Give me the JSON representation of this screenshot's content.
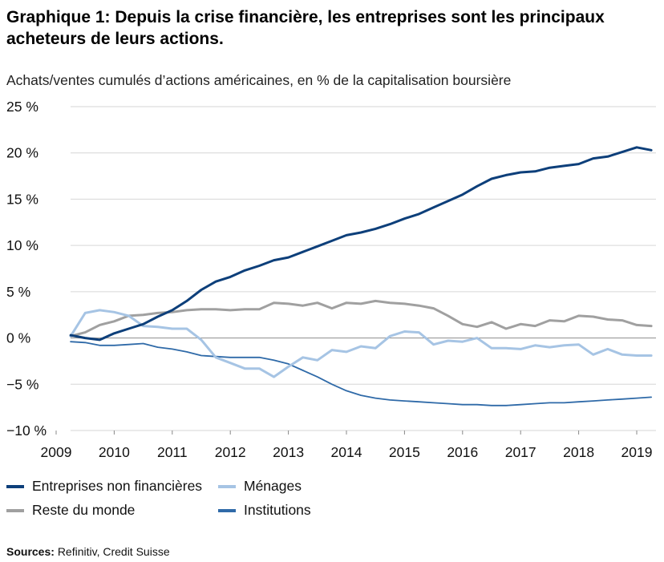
{
  "header": {
    "title": "Graphique 1: Depuis la crise financière, les entreprises sont les principaux acheteurs de leurs actions.",
    "subtitle": "Achats/ventes cumulés d’actions américaines, en % de la capitalisation boursière"
  },
  "footer": {
    "source_label": "Sources:",
    "source_text": "Refinitiv, Credit Suisse"
  },
  "colors": {
    "entreprises": "#0d3f7a",
    "menages": "#a6c4e4",
    "reste": "#a0a0a0",
    "institutions": "#2f6aa8",
    "grid": "#d6d6d6",
    "zero_line": "#999999"
  },
  "chart_data": {
    "type": "line",
    "title": "Graphique 1: Depuis la crise financière, les entreprises sont les principaux acheteurs de leurs actions.",
    "subtitle": "Achats/ventes cumulés d’actions américaines, en % de la capitalisation boursière",
    "xlim": [
      2009,
      2019.33
    ],
    "ylim": [
      -10,
      25
    ],
    "x_ticks": [
      2009,
      2010,
      2011,
      2012,
      2013,
      2014,
      2015,
      2016,
      2017,
      2018,
      2019
    ],
    "x_tick_labels": [
      "2009",
      "2010",
      "2011",
      "2012",
      "2013",
      "2014",
      "2015",
      "2016",
      "2017",
      "2018",
      "2019"
    ],
    "y_ticks": [
      -10,
      -5,
      0,
      5,
      10,
      15,
      20,
      25
    ],
    "y_tick_labels": [
      "−10 %",
      "−5 %",
      "0 %",
      "5 %",
      "10 %",
      "15 %",
      "20 %",
      "25 %"
    ],
    "grid": "horizontal",
    "legend_position": "bottom",
    "x": [
      2009.25,
      2009.5,
      2009.75,
      2010.0,
      2010.25,
      2010.5,
      2010.75,
      2011.0,
      2011.25,
      2011.5,
      2011.75,
      2012.0,
      2012.25,
      2012.5,
      2012.75,
      2013.0,
      2013.25,
      2013.5,
      2013.75,
      2014.0,
      2014.25,
      2014.5,
      2014.75,
      2015.0,
      2015.25,
      2015.5,
      2015.75,
      2016.0,
      2016.25,
      2016.5,
      2016.75,
      2017.0,
      2017.25,
      2017.5,
      2017.75,
      2018.0,
      2018.25,
      2018.5,
      2018.75,
      2019.0,
      2019.25
    ],
    "series": [
      {
        "name": "Entreprises non financières",
        "key": "entreprises",
        "stroke_width": 3,
        "values": [
          0.3,
          0.0,
          -0.2,
          0.5,
          1.0,
          1.5,
          2.3,
          3.0,
          4.0,
          5.2,
          6.1,
          6.6,
          7.3,
          7.8,
          8.4,
          8.7,
          9.3,
          9.9,
          10.5,
          11.1,
          11.4,
          11.8,
          12.3,
          12.9,
          13.4,
          14.1,
          14.8,
          15.5,
          16.4,
          17.2,
          17.6,
          17.9,
          18.0,
          18.4,
          18.6,
          18.8,
          19.4,
          19.6,
          20.1,
          20.6,
          20.3
        ]
      },
      {
        "name": "Ménages",
        "key": "menages",
        "stroke_width": 3,
        "values": [
          0.2,
          2.7,
          3.0,
          2.8,
          2.4,
          1.3,
          1.2,
          1.0,
          1.0,
          -0.2,
          -2.1,
          -2.7,
          -3.3,
          -3.3,
          -4.2,
          -3.1,
          -2.1,
          -2.4,
          -1.3,
          -1.5,
          -0.9,
          -1.1,
          0.2,
          0.7,
          0.6,
          -0.7,
          -0.3,
          -0.4,
          0.0,
          -1.1,
          -1.1,
          -1.2,
          -0.8,
          -1.0,
          -0.8,
          -0.7,
          -1.8,
          -1.2,
          -1.8,
          -1.9,
          -1.9
        ]
      },
      {
        "name": "Reste du monde",
        "key": "reste",
        "stroke_width": 3,
        "values": [
          0.2,
          0.6,
          1.4,
          1.8,
          2.4,
          2.5,
          2.7,
          2.8,
          3.0,
          3.1,
          3.1,
          3.0,
          3.1,
          3.1,
          3.8,
          3.7,
          3.5,
          3.8,
          3.2,
          3.8,
          3.7,
          4.0,
          3.8,
          3.7,
          3.5,
          3.2,
          2.4,
          1.5,
          1.2,
          1.7,
          1.0,
          1.5,
          1.3,
          1.9,
          1.8,
          2.4,
          2.3,
          2.0,
          1.9,
          1.4,
          1.3
        ]
      },
      {
        "name": "Institutions",
        "key": "institutions",
        "stroke_width": 1.8,
        "values": [
          -0.4,
          -0.5,
          -0.8,
          -0.8,
          -0.7,
          -0.6,
          -1.0,
          -1.2,
          -1.5,
          -1.9,
          -2.0,
          -2.1,
          -2.1,
          -2.1,
          -2.4,
          -2.8,
          -3.5,
          -4.2,
          -5.0,
          -5.7,
          -6.2,
          -6.5,
          -6.7,
          -6.8,
          -6.9,
          -7.0,
          -7.1,
          -7.2,
          -7.2,
          -7.3,
          -7.3,
          -7.2,
          -7.1,
          -7.0,
          -7.0,
          -6.9,
          -6.8,
          -6.7,
          -6.6,
          -6.5,
          -6.4
        ]
      }
    ]
  }
}
